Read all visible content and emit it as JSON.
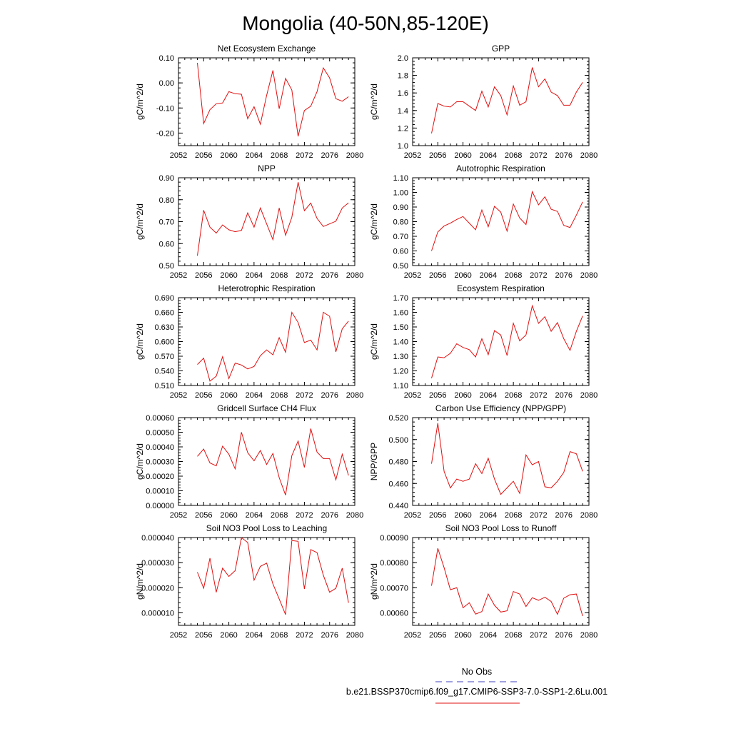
{
  "title": "Mongolia (40-50N,85-120E)",
  "legend": {
    "placement": "bottom-right",
    "entries": [
      {
        "label": "No Obs",
        "color": "#4040c0",
        "dash": true
      },
      {
        "label": "b.e21.BSSP370cmip6.f09_g17.CMIP6-SSP3-7.0-SSP1-2.6Lu.001",
        "color": "#e01010",
        "dash": false
      }
    ]
  },
  "series_color": "#e01010",
  "chart_data": [
    {
      "type": "line",
      "title": "Net Ecosystem Exchange",
      "ylabel": "gC/m^2/d",
      "xlim": [
        2052,
        2080
      ],
      "ylim": [
        -0.25,
        0.1
      ],
      "xticks": [
        "2052",
        "2056",
        "2060",
        "2064",
        "2068",
        "2072",
        "2076",
        "2080"
      ],
      "yticks": [
        "-0.20",
        "-0.10",
        "0.00",
        "0.10"
      ],
      "x": [
        2055,
        2056,
        2057,
        2058,
        2059,
        2060,
        2061,
        2062,
        2063,
        2064,
        2065,
        2066,
        2067,
        2068,
        2069,
        2070,
        2071,
        2072,
        2073,
        2074,
        2075,
        2076,
        2077,
        2078,
        2079
      ],
      "values": [
        0.08,
        -0.162,
        -0.107,
        -0.083,
        -0.08,
        -0.035,
        -0.043,
        -0.045,
        -0.143,
        -0.095,
        -0.165,
        -0.05,
        0.05,
        -0.103,
        0.018,
        -0.028,
        -0.213,
        -0.11,
        -0.093,
        -0.035,
        0.06,
        0.02,
        -0.063,
        -0.073,
        -0.055
      ]
    },
    {
      "type": "line",
      "title": "GPP",
      "ylabel": "gC/m^2/d",
      "xlim": [
        2052,
        2080
      ],
      "ylim": [
        1.0,
        2.0
      ],
      "xticks": [
        "2052",
        "2056",
        "2060",
        "2064",
        "2068",
        "2072",
        "2076",
        "2080"
      ],
      "yticks": [
        "1.0",
        "1.2",
        "1.4",
        "1.6",
        "1.8",
        "2.0"
      ],
      "x": [
        2055,
        2056,
        2057,
        2058,
        2059,
        2060,
        2061,
        2062,
        2063,
        2064,
        2065,
        2066,
        2067,
        2068,
        2069,
        2070,
        2071,
        2072,
        2073,
        2074,
        2075,
        2076,
        2077,
        2078,
        2079
      ],
      "values": [
        1.14,
        1.48,
        1.45,
        1.44,
        1.5,
        1.5,
        1.45,
        1.4,
        1.62,
        1.44,
        1.67,
        1.57,
        1.35,
        1.68,
        1.46,
        1.5,
        1.89,
        1.67,
        1.76,
        1.61,
        1.57,
        1.46,
        1.46,
        1.61,
        1.72
      ]
    },
    {
      "type": "line",
      "title": "NPP",
      "ylabel": "gC/m^2/d",
      "xlim": [
        2052,
        2080
      ],
      "ylim": [
        0.5,
        0.9
      ],
      "xticks": [
        "2052",
        "2056",
        "2060",
        "2064",
        "2068",
        "2072",
        "2076",
        "2080"
      ],
      "yticks": [
        "0.50",
        "0.60",
        "0.70",
        "0.80",
        "0.90"
      ],
      "x": [
        2055,
        2056,
        2057,
        2058,
        2059,
        2060,
        2061,
        2062,
        2063,
        2064,
        2065,
        2066,
        2067,
        2068,
        2069,
        2070,
        2071,
        2072,
        2073,
        2074,
        2075,
        2076,
        2077,
        2078,
        2079
      ],
      "values": [
        0.545,
        0.752,
        0.675,
        0.648,
        0.685,
        0.663,
        0.654,
        0.66,
        0.74,
        0.675,
        0.762,
        0.69,
        0.618,
        0.762,
        0.638,
        0.72,
        0.88,
        0.75,
        0.785,
        0.715,
        0.678,
        0.69,
        0.702,
        0.762,
        0.786
      ]
    },
    {
      "type": "line",
      "title": "Autotrophic Respiration",
      "ylabel": "gC/m^2/d",
      "xlim": [
        2052,
        2080
      ],
      "ylim": [
        0.5,
        1.1
      ],
      "xticks": [
        "2052",
        "2056",
        "2060",
        "2064",
        "2068",
        "2072",
        "2076",
        "2080"
      ],
      "yticks": [
        "0.50",
        "0.60",
        "0.70",
        "0.80",
        "0.90",
        "1.00",
        "1.10"
      ],
      "x": [
        2055,
        2056,
        2057,
        2058,
        2059,
        2060,
        2061,
        2062,
        2063,
        2064,
        2065,
        2066,
        2067,
        2068,
        2069,
        2070,
        2071,
        2072,
        2073,
        2074,
        2075,
        2076,
        2077,
        2078,
        2079
      ],
      "values": [
        0.6,
        0.73,
        0.77,
        0.79,
        0.815,
        0.835,
        0.79,
        0.745,
        0.88,
        0.765,
        0.905,
        0.865,
        0.735,
        0.92,
        0.825,
        0.78,
        1.005,
        0.915,
        0.97,
        0.885,
        0.87,
        0.775,
        0.76,
        0.845,
        0.935
      ]
    },
    {
      "type": "line",
      "title": "Heterotrophic Respiration",
      "ylabel": "gC/m^2/d",
      "xlim": [
        2052,
        2080
      ],
      "ylim": [
        0.51,
        0.69
      ],
      "xticks": [
        "2052",
        "2056",
        "2060",
        "2064",
        "2068",
        "2072",
        "2076",
        "2080"
      ],
      "yticks": [
        "0.510",
        "0.540",
        "0.570",
        "0.600",
        "0.630",
        "0.660",
        "0.690"
      ],
      "x": [
        2055,
        2056,
        2057,
        2058,
        2059,
        2060,
        2061,
        2062,
        2063,
        2064,
        2065,
        2066,
        2067,
        2068,
        2069,
        2070,
        2071,
        2072,
        2073,
        2074,
        2075,
        2076,
        2077,
        2078,
        2079
      ],
      "values": [
        0.553,
        0.566,
        0.519,
        0.529,
        0.569,
        0.524,
        0.556,
        0.552,
        0.544,
        0.549,
        0.571,
        0.583,
        0.573,
        0.608,
        0.578,
        0.66,
        0.639,
        0.598,
        0.603,
        0.583,
        0.66,
        0.652,
        0.579,
        0.626,
        0.642
      ]
    },
    {
      "type": "line",
      "title": "Ecosystem Respiration",
      "ylabel": "gC/m^2/d",
      "xlim": [
        2052,
        2080
      ],
      "ylim": [
        1.1,
        1.7
      ],
      "xticks": [
        "2052",
        "2056",
        "2060",
        "2064",
        "2068",
        "2072",
        "2076",
        "2080"
      ],
      "yticks": [
        "1.10",
        "1.20",
        "1.30",
        "1.40",
        "1.50",
        "1.60",
        "1.70"
      ],
      "x": [
        2055,
        2056,
        2057,
        2058,
        2059,
        2060,
        2061,
        2062,
        2063,
        2064,
        2065,
        2066,
        2067,
        2068,
        2069,
        2070,
        2071,
        2072,
        2073,
        2074,
        2075,
        2076,
        2077,
        2078,
        2079
      ],
      "values": [
        1.15,
        1.295,
        1.29,
        1.32,
        1.385,
        1.36,
        1.345,
        1.295,
        1.42,
        1.31,
        1.475,
        1.445,
        1.305,
        1.525,
        1.405,
        1.445,
        1.645,
        1.525,
        1.57,
        1.47,
        1.53,
        1.42,
        1.34,
        1.47,
        1.575
      ]
    },
    {
      "type": "line",
      "title": "Gridcell Surface CH4 Flux",
      "ylabel": "gC/m^2/d",
      "xlim": [
        2052,
        2080
      ],
      "ylim": [
        0.0,
        0.0006
      ],
      "xticks": [
        "2052",
        "2056",
        "2060",
        "2064",
        "2068",
        "2072",
        "2076",
        "2080"
      ],
      "yticks": [
        "0.00000",
        "0.00010",
        "0.00020",
        "0.00030",
        "0.00040",
        "0.00050",
        "0.00060"
      ],
      "x": [
        2055,
        2056,
        2057,
        2058,
        2059,
        2060,
        2061,
        2062,
        2063,
        2064,
        2065,
        2066,
        2067,
        2068,
        2069,
        2070,
        2071,
        2072,
        2073,
        2074,
        2075,
        2076,
        2077,
        2078,
        2079
      ],
      "values": [
        0.000335,
        0.000385,
        0.00029,
        0.00027,
        0.000405,
        0.00035,
        0.00025,
        0.0005,
        0.00036,
        0.000305,
        0.000375,
        0.00028,
        0.000355,
        0.00019,
        7e-05,
        0.00034,
        0.00044,
        0.00026,
        0.000525,
        0.000365,
        0.00032,
        0.00032,
        0.000175,
        0.00035,
        0.000205
      ]
    },
    {
      "type": "line",
      "title": "Carbon Use Efficiency (NPP/GPP)",
      "ylabel": "NPP/GPP",
      "xlim": [
        2052,
        2080
      ],
      "ylim": [
        0.44,
        0.52
      ],
      "xticks": [
        "2052",
        "2056",
        "2060",
        "2064",
        "2068",
        "2072",
        "2076",
        "2080"
      ],
      "yticks": [
        "0.440",
        "0.460",
        "0.480",
        "0.500",
        "0.520"
      ],
      "x": [
        2055,
        2056,
        2057,
        2058,
        2059,
        2060,
        2061,
        2062,
        2063,
        2064,
        2065,
        2066,
        2067,
        2068,
        2069,
        2070,
        2071,
        2072,
        2073,
        2074,
        2075,
        2076,
        2077,
        2078,
        2079
      ],
      "values": [
        0.478,
        0.515,
        0.471,
        0.456,
        0.464,
        0.462,
        0.464,
        0.478,
        0.469,
        0.483,
        0.464,
        0.45,
        0.456,
        0.462,
        0.451,
        0.486,
        0.477,
        0.48,
        0.457,
        0.456,
        0.462,
        0.47,
        0.489,
        0.487,
        0.471
      ]
    },
    {
      "type": "line",
      "title": "Soil NO3 Pool Loss to Leaching",
      "ylabel": "gN/m^2/d",
      "xlim": [
        2052,
        2080
      ],
      "ylim": [
        5e-06,
        4e-05
      ],
      "xticks": [
        "2052",
        "2056",
        "2060",
        "2064",
        "2068",
        "2072",
        "2076",
        "2080"
      ],
      "yticks": [
        "0.000010",
        "0.000020",
        "0.000030",
        "0.000040"
      ],
      "x": [
        2055,
        2056,
        2057,
        2058,
        2059,
        2060,
        2061,
        2062,
        2063,
        2064,
        2065,
        2066,
        2067,
        2068,
        2069,
        2070,
        2071,
        2072,
        2073,
        2074,
        2075,
        2076,
        2077,
        2078,
        2079
      ],
      "values": [
        2.62e-05,
        1.98e-05,
        3.18e-05,
        1.82e-05,
        2.78e-05,
        2.45e-05,
        2.68e-05,
        4e-05,
        3.8e-05,
        2.3e-05,
        2.85e-05,
        2.98e-05,
        2.15e-05,
        1.55e-05,
        9.3e-06,
        3.88e-05,
        3.85e-05,
        1.95e-05,
        3.52e-05,
        3.4e-05,
        2.5e-05,
        1.82e-05,
        1.98e-05,
        2.78e-05,
        1.4e-05
      ]
    },
    {
      "type": "line",
      "title": "Soil NO3 Pool Loss to Runoff",
      "ylabel": "gN/m^2/d",
      "xlim": [
        2052,
        2080
      ],
      "ylim": [
        0.00055,
        0.0009
      ],
      "xticks": [
        "2052",
        "2056",
        "2060",
        "2064",
        "2068",
        "2072",
        "2076",
        "2080"
      ],
      "yticks": [
        "0.00060",
        "0.00070",
        "0.00080",
        "0.00090"
      ],
      "x": [
        2055,
        2056,
        2057,
        2058,
        2059,
        2060,
        2061,
        2062,
        2063,
        2064,
        2065,
        2066,
        2067,
        2068,
        2069,
        2070,
        2071,
        2072,
        2073,
        2074,
        2075,
        2076,
        2077,
        2078,
        2079
      ],
      "values": [
        0.000708,
        0.000857,
        0.00078,
        0.000692,
        0.0007,
        0.00062,
        0.00064,
        0.000595,
        0.000605,
        0.000675,
        0.00063,
        0.000603,
        0.000608,
        0.000685,
        0.000675,
        0.000625,
        0.00066,
        0.00065,
        0.000662,
        0.000645,
        0.000594,
        0.000658,
        0.000672,
        0.000675,
        0.000587
      ]
    }
  ]
}
